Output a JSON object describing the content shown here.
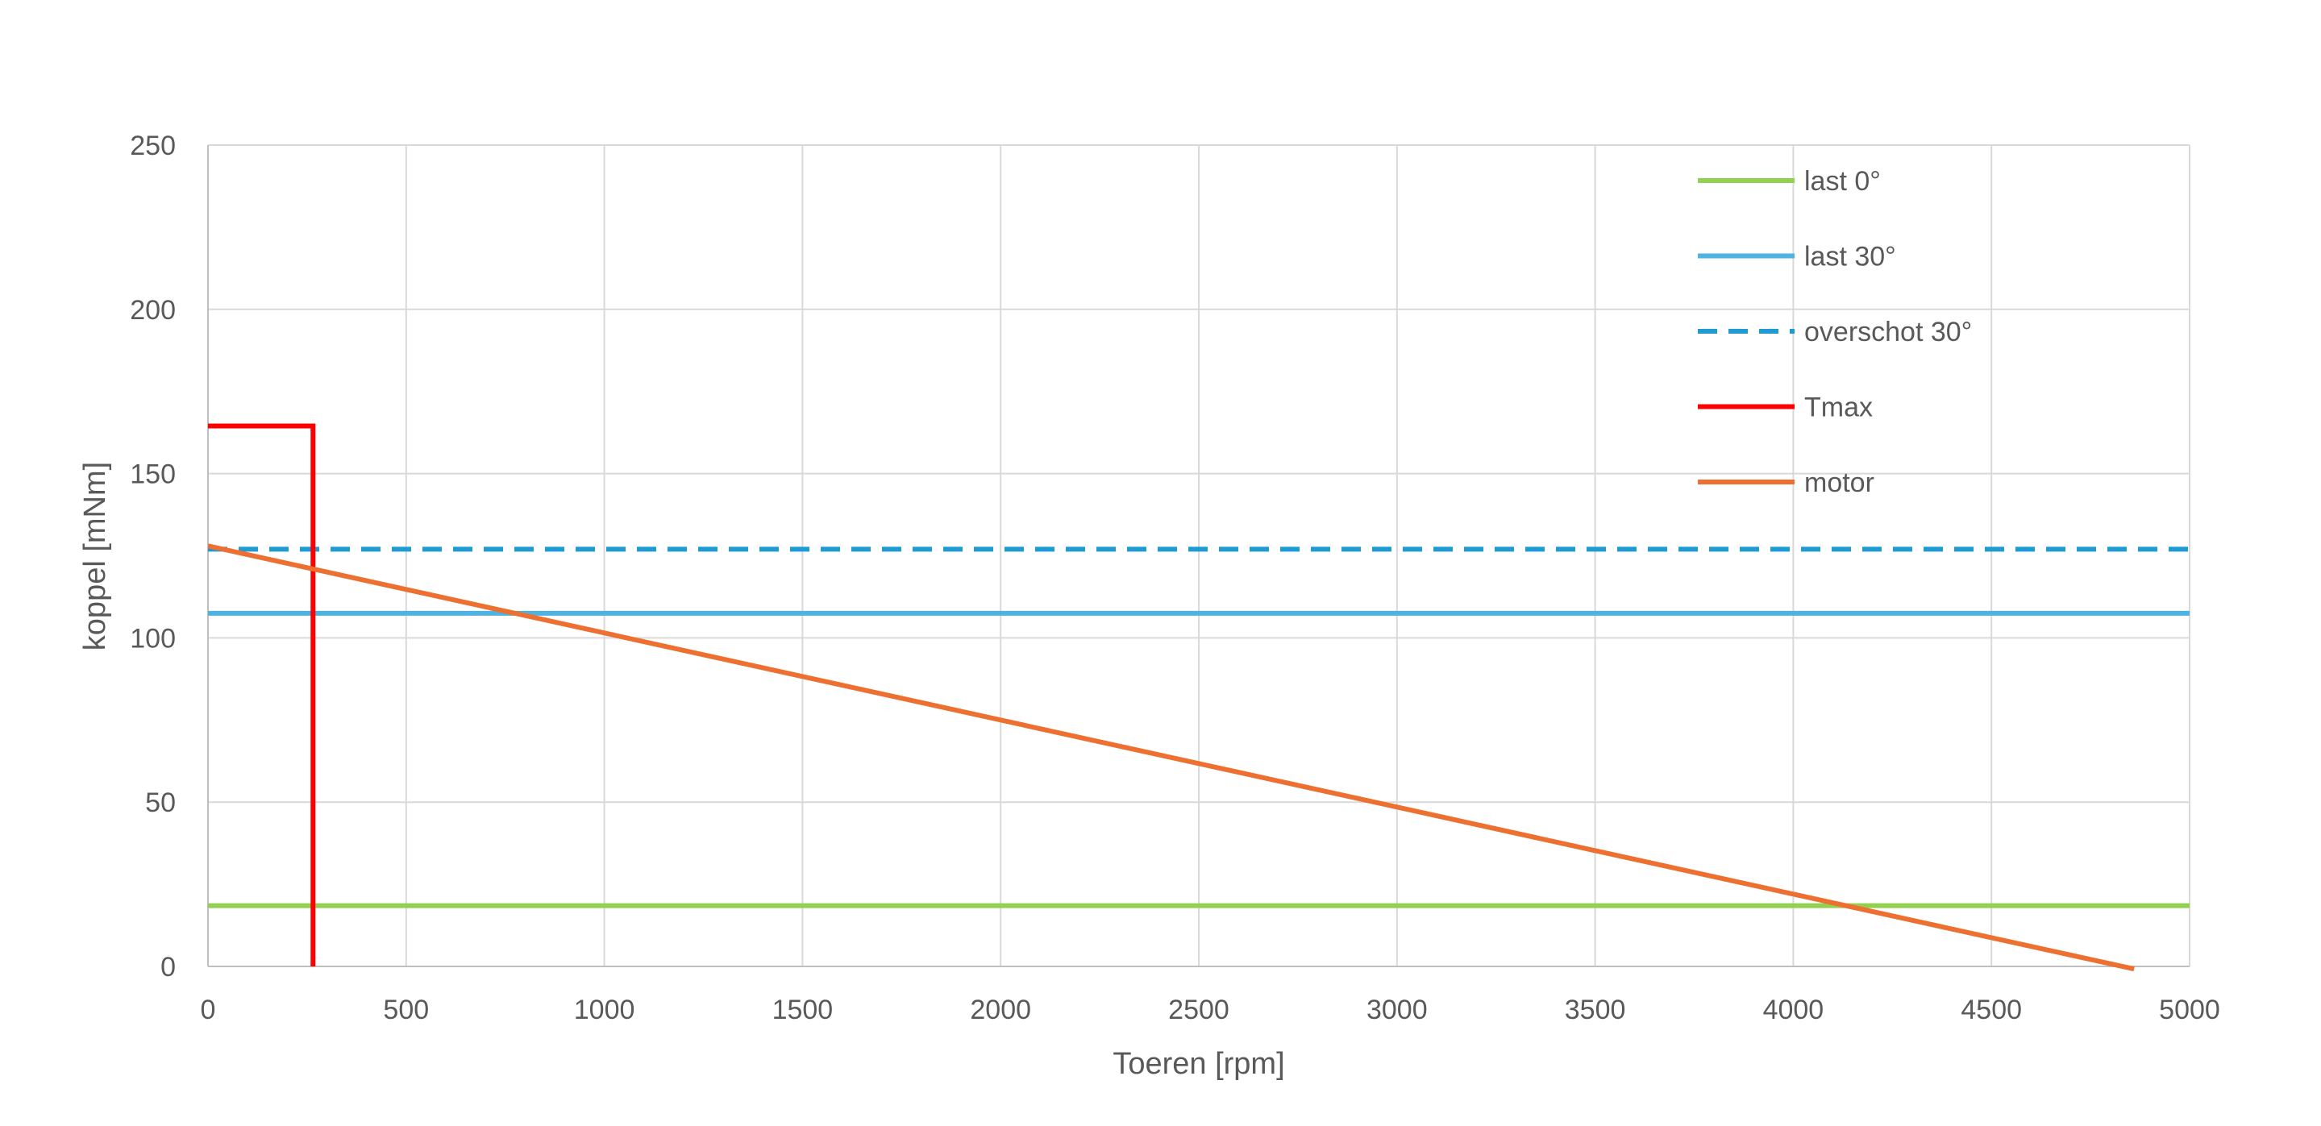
{
  "chart_data": {
    "type": "line",
    "title": "",
    "xlabel": "Toeren [rpm]",
    "ylabel": "koppel [mNm]",
    "xlim": [
      0,
      5000
    ],
    "ylim": [
      0,
      250
    ],
    "x_ticks": [
      0,
      500,
      1000,
      1500,
      2000,
      2500,
      3000,
      3500,
      4000,
      4500,
      5000
    ],
    "y_ticks": [
      0,
      50,
      100,
      150,
      200,
      250
    ],
    "grid": true,
    "legend_position": "top-right",
    "series": [
      {
        "name": "last 0°",
        "color": "#92d050",
        "style": "solid",
        "x": [
          0,
          5000
        ],
        "y": [
          18.5,
          18.5
        ]
      },
      {
        "name": "last 30°",
        "color": "#4eb3e0",
        "style": "solid",
        "x": [
          0,
          5000
        ],
        "y": [
          107.5,
          107.5
        ]
      },
      {
        "name": "overschot 30°",
        "color": "#1f9bd1",
        "style": "dashed",
        "x": [
          0,
          5000
        ],
        "y": [
          127,
          127
        ]
      },
      {
        "name": "Tmax",
        "color": "#ff0000",
        "style": "solid",
        "x": [
          0,
          265,
          265
        ],
        "y": [
          164.5,
          164.5,
          0
        ]
      },
      {
        "name": "motor",
        "color": "#ed7031",
        "style": "solid",
        "x": [
          0,
          4830
        ],
        "y": [
          128,
          0
        ]
      }
    ]
  }
}
